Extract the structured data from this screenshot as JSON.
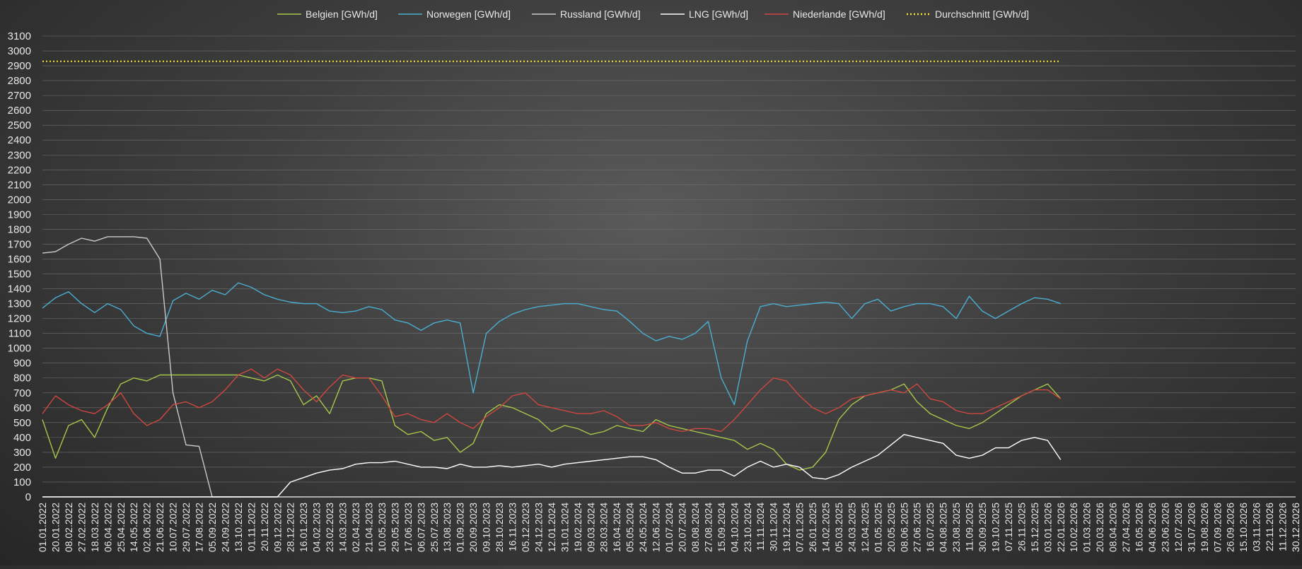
{
  "chart_data": {
    "type": "line",
    "title": "",
    "xlabel": "",
    "ylabel": "",
    "ylim": [
      0,
      3100
    ],
    "yticks": [
      0,
      100,
      200,
      300,
      400,
      500,
      600,
      700,
      800,
      900,
      1000,
      1100,
      1200,
      1300,
      1400,
      1500,
      1600,
      1700,
      1800,
      1900,
      2000,
      2100,
      2200,
      2300,
      2400,
      2500,
      2600,
      2700,
      2800,
      2900,
      3000,
      3100
    ],
    "grid": true,
    "legend_position": "top",
    "x_categories": [
      "01.01.2022",
      "20.01.2022",
      "08.02.2022",
      "27.02.2022",
      "18.03.2022",
      "06.04.2022",
      "25.04.2022",
      "14.05.2022",
      "02.06.2022",
      "21.06.2022",
      "10.07.2022",
      "29.07.2022",
      "17.08.2022",
      "05.09.2022",
      "24.09.2022",
      "13.10.2022",
      "01.11.2022",
      "20.11.2022",
      "09.12.2022",
      "28.12.2022",
      "16.01.2023",
      "04.02.2023",
      "23.02.2023",
      "14.03.2023",
      "02.04.2023",
      "21.04.2023",
      "10.05.2023",
      "29.05.2023",
      "17.06.2023",
      "06.07.2023",
      "25.07.2023",
      "13.08.2023",
      "01.09.2023",
      "20.09.2023",
      "09.10.2023",
      "28.10.2023",
      "16.11.2023",
      "05.12.2023",
      "24.12.2023",
      "12.01.2024",
      "31.01.2024",
      "19.02.2024",
      "09.03.2024",
      "28.03.2024",
      "16.04.2024",
      "05.05.2024",
      "24.05.2024",
      "12.06.2024",
      "01.07.2024",
      "20.07.2024",
      "08.08.2024",
      "27.08.2024",
      "15.09.2024",
      "04.10.2024",
      "23.10.2024",
      "11.11.2024",
      "30.11.2024",
      "19.12.2024",
      "07.01.2025",
      "26.01.2025",
      "14.02.2025",
      "05.03.2025",
      "24.03.2025",
      "12.04.2025",
      "01.05.2025",
      "20.05.2025",
      "08.06.2025",
      "27.06.2025",
      "16.07.2025",
      "04.08.2025",
      "23.08.2025",
      "11.09.2025",
      "30.09.2025",
      "19.10.2025",
      "07.11.2025",
      "26.11.2025",
      "15.12.2025",
      "03.01.2026",
      "22.01.2026",
      "10.02.2026",
      "01.03.2026",
      "20.03.2026",
      "08.04.2026",
      "27.04.2026",
      "16.05.2026",
      "04.06.2026",
      "23.06.2026",
      "12.07.2026",
      "31.07.2026",
      "19.08.2026",
      "07.09.2026",
      "26.09.2026",
      "15.10.2026",
      "03.11.2026",
      "22.11.2026",
      "11.12.2026",
      "30.12.2026"
    ],
    "series": [
      {
        "name": "Belgien [GWh/d]",
        "color": "#a6c84a",
        "values": [
          520,
          260,
          480,
          520,
          400,
          600,
          760,
          800,
          780,
          820,
          820,
          820,
          820,
          820,
          820,
          820,
          800,
          780,
          820,
          780,
          620,
          680,
          560,
          780,
          800,
          800,
          780,
          480,
          420,
          440,
          380,
          400,
          300,
          360,
          560,
          620,
          600,
          560,
          520,
          440,
          480,
          460,
          420,
          440,
          480,
          460,
          440,
          520,
          480,
          460,
          440,
          420,
          400,
          380,
          320,
          360,
          320,
          220,
          180,
          200,
          300,
          520,
          620,
          680,
          700,
          720,
          760,
          640,
          560,
          520,
          480,
          460,
          500,
          560,
          620,
          680,
          720,
          760,
          660
        ]
      },
      {
        "name": "Norwegen [GWh/d]",
        "color": "#4aaed0",
        "values": [
          1270,
          1340,
          1380,
          1300,
          1240,
          1300,
          1260,
          1150,
          1100,
          1080,
          1320,
          1370,
          1330,
          1390,
          1360,
          1440,
          1410,
          1360,
          1330,
          1310,
          1300,
          1300,
          1250,
          1240,
          1250,
          1280,
          1260,
          1190,
          1170,
          1120,
          1170,
          1190,
          1170,
          700,
          1100,
          1180,
          1230,
          1260,
          1280,
          1290,
          1300,
          1300,
          1280,
          1260,
          1250,
          1180,
          1100,
          1050,
          1080,
          1060,
          1100,
          1180,
          800,
          620,
          1050,
          1280,
          1300,
          1280,
          1290,
          1300,
          1310,
          1300,
          1200,
          1300,
          1330,
          1250,
          1280,
          1300,
          1300,
          1280,
          1200,
          1350,
          1250,
          1200,
          1250,
          1300,
          1340,
          1330,
          1300
        ]
      },
      {
        "name": "Russland [GWh/d]",
        "color": "#c9c9c9",
        "values": [
          1640,
          1650,
          1700,
          1740,
          1720,
          1750,
          1750,
          1750,
          1740,
          1600,
          700,
          350,
          340,
          0,
          0,
          0,
          0,
          0,
          0,
          0,
          0,
          0,
          0,
          0,
          0,
          0,
          0,
          0,
          0,
          0,
          0,
          0,
          0,
          0,
          0,
          0,
          0,
          0,
          0,
          0,
          0,
          0,
          0,
          0,
          0,
          0,
          0,
          0,
          0,
          0,
          0,
          0,
          0,
          0,
          0,
          0,
          0,
          0,
          0,
          0,
          0,
          0,
          0,
          0,
          0,
          0,
          0,
          0,
          0,
          0,
          0,
          0,
          0,
          0,
          0,
          0,
          0,
          0,
          0
        ]
      },
      {
        "name": "LNG [GWh/d]",
        "color": "#ffffff",
        "values": [
          0,
          0,
          0,
          0,
          0,
          0,
          0,
          0,
          0,
          0,
          0,
          0,
          0,
          0,
          0,
          0,
          0,
          0,
          0,
          100,
          130,
          160,
          180,
          190,
          220,
          230,
          230,
          240,
          220,
          200,
          200,
          190,
          220,
          200,
          200,
          210,
          200,
          210,
          220,
          200,
          220,
          230,
          240,
          250,
          260,
          270,
          270,
          250,
          200,
          160,
          160,
          180,
          180,
          140,
          200,
          240,
          200,
          220,
          200,
          130,
          120,
          150,
          200,
          240,
          280,
          350,
          420,
          400,
          380,
          360,
          280,
          260,
          280,
          330,
          330,
          380,
          400,
          380,
          250
        ]
      },
      {
        "name": "Niederlande [GWh/d]",
        "color": "#d0473f",
        "values": [
          560,
          680,
          620,
          580,
          560,
          620,
          700,
          560,
          480,
          520,
          620,
          640,
          600,
          640,
          720,
          820,
          860,
          800,
          860,
          820,
          720,
          640,
          740,
          820,
          800,
          800,
          680,
          540,
          560,
          520,
          500,
          560,
          500,
          460,
          540,
          600,
          680,
          700,
          620,
          600,
          580,
          560,
          560,
          580,
          540,
          480,
          480,
          500,
          460,
          440,
          460,
          460,
          440,
          520,
          620,
          720,
          800,
          780,
          680,
          600,
          560,
          600,
          660,
          680,
          700,
          720,
          700,
          760,
          660,
          640,
          580,
          560,
          560,
          600,
          640,
          680,
          720,
          720,
          660
        ]
      },
      {
        "name": "Durchschnitt [GWh/d]",
        "color": "#f2e233",
        "dashed": true,
        "values": [
          2930,
          2930,
          2930,
          2930,
          2930,
          2930,
          2930,
          2930,
          2930,
          2930,
          2930,
          2930,
          2930,
          2930,
          2930,
          2930,
          2930,
          2930,
          2930,
          2930,
          2930,
          2930,
          2930,
          2930,
          2930,
          2930,
          2930,
          2930,
          2930,
          2930,
          2930,
          2930,
          2930,
          2930,
          2930,
          2930,
          2930,
          2930,
          2930,
          2930,
          2930,
          2930,
          2930,
          2930,
          2930,
          2930,
          2930,
          2930,
          2930,
          2930,
          2930,
          2930,
          2930,
          2930,
          2930,
          2930,
          2930,
          2930,
          2930,
          2930,
          2930,
          2930,
          2930,
          2930,
          2930,
          2930,
          2930,
          2930,
          2930,
          2930,
          2930,
          2930,
          2930,
          2930,
          2930,
          2930,
          2930,
          2930,
          2930
        ]
      }
    ]
  }
}
